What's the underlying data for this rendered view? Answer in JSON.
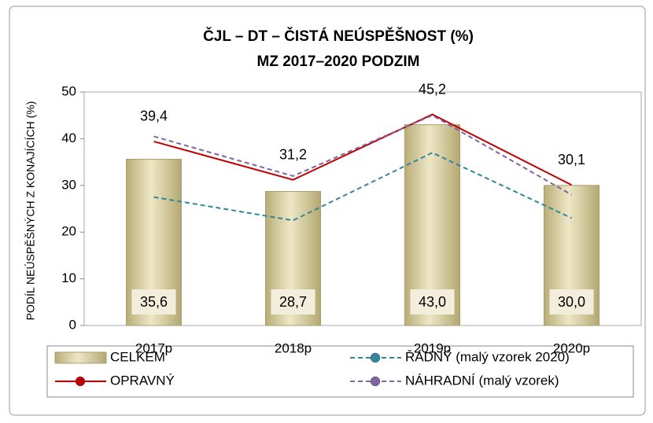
{
  "chart_data": {
    "type": "bar",
    "title": "ČJL – DT – ČISTÁ NEÚSPĚŠNOST (%)",
    "subtitle": "MZ 2017–2020 PODZIM",
    "y_label": "PODÍL NEÚSPĚŠNÝCH Z KONAJÍCÍCH (%)",
    "categories": [
      "2017p",
      "2018p",
      "2019p",
      "2020p"
    ],
    "series": [
      {
        "name": "CELKEM",
        "type": "bar",
        "color": "#d6cc9c",
        "values": [
          35.6,
          28.7,
          43.0,
          30.0
        ],
        "value_labels": [
          "35,6",
          "28,7",
          "43,0",
          "30,0"
        ]
      },
      {
        "name": "ŘÁDNÝ (malý vzorek 2020)",
        "type": "line",
        "dashed": true,
        "color": "#31859c",
        "values": [
          27.5,
          22.5,
          37,
          23
        ]
      },
      {
        "name": "OPRAVNÝ",
        "type": "line",
        "dashed": false,
        "color": "#c00000",
        "values": [
          39.4,
          31.2,
          45.2,
          30.1
        ],
        "value_labels": [
          "39,4",
          "31,2",
          "45,2",
          "30,1"
        ]
      },
      {
        "name": "NÁHRADNÍ (malý vzorek)",
        "type": "line",
        "dashed": true,
        "color": "#8064a2",
        "values": [
          40.5,
          32,
          45,
          28
        ]
      }
    ],
    "ylim": [
      0,
      50
    ],
    "yticks": [
      0,
      10,
      20,
      30,
      40,
      50
    ],
    "grid": false
  }
}
